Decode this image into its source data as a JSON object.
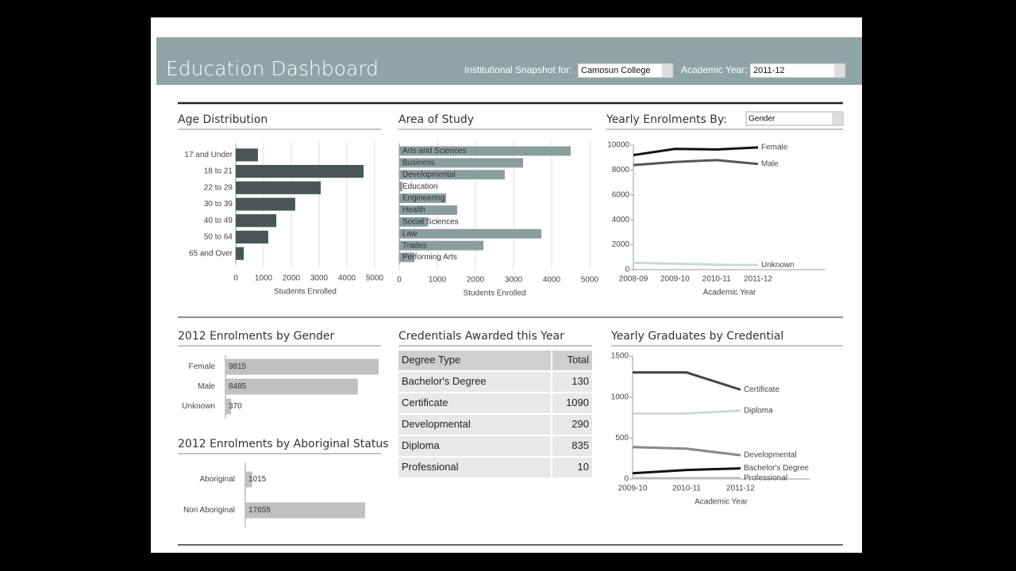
{
  "header": {
    "title": "Education Dashboard",
    "snapshot_label": "Institutional Snapshot for:",
    "institution": "Camosun College",
    "year_label": "Academic Year:",
    "year": "2011-12"
  },
  "chart_data": [
    {
      "type": "bar",
      "title": "Age Distribution",
      "categories": [
        "17 and Under",
        "18 to 21",
        "22 to 29",
        "30 to 39",
        "40 to 49",
        "50 to 64",
        "65 and Over"
      ],
      "values": [
        800,
        4600,
        3060,
        2140,
        1460,
        1170,
        290
      ],
      "color": "#4a5656",
      "xlim": [
        0,
        5000
      ],
      "xticks": [
        0,
        1000,
        2000,
        3000,
        4000,
        5000
      ],
      "xlabel": "Students Enrolled",
      "grid": true
    },
    {
      "type": "bar",
      "title": "Area of Study",
      "categories": [
        "Arts and Sciences",
        "Business",
        "Developmental",
        "Education",
        "Engineering",
        "Health",
        "Social Sciences",
        "Law",
        "Trades",
        "Performing Arts"
      ],
      "values": [
        4500,
        3250,
        2770,
        80,
        1230,
        1520,
        750,
        3730,
        2210,
        400
      ],
      "color": "#8a9e9e",
      "xlim": [
        0,
        5000
      ],
      "xticks": [
        0,
        1000,
        2000,
        3000,
        4000,
        5000
      ],
      "xlabel": "Students Enrolled",
      "grid": true,
      "label_position": "inside"
    },
    {
      "type": "line",
      "title": "Yearly Enrolments By:",
      "selector": "Gender",
      "categories": [
        "2008-09",
        "2009-10",
        "2010-11",
        "2011-12"
      ],
      "xlabel": "Academic Year",
      "ylim": [
        0,
        10000
      ],
      "yticks": [
        0,
        2000,
        4000,
        6000,
        8000,
        10000
      ],
      "series": [
        {
          "name": "Female",
          "color": "#111111",
          "values": [
            9200,
            9700,
            9650,
            9815
          ]
        },
        {
          "name": "Male",
          "color": "#555555",
          "values": [
            8400,
            8650,
            8800,
            8485
          ]
        },
        {
          "name": "Unknown",
          "color": "#c8dada",
          "values": [
            550,
            480,
            400,
            370
          ]
        }
      ]
    },
    {
      "type": "bar",
      "title": "2012 Enrolments by Gender",
      "categories": [
        "Female",
        "Male",
        "Unknown"
      ],
      "values": [
        9815,
        8485,
        370
      ],
      "color": "#c0c0c0"
    },
    {
      "type": "bar",
      "title": "2012 Enrolments by Aboriginal Status",
      "categories": [
        "Aboriginal",
        "Non Aboriginal"
      ],
      "values": [
        1015,
        17655
      ],
      "color": "#c0c0c0"
    },
    {
      "type": "line",
      "title": "Yearly Graduates by Credential",
      "categories": [
        "2009-10",
        "2010-11",
        "2011-12"
      ],
      "xlabel": "Academic Year",
      "ylim": [
        0,
        1500
      ],
      "yticks": [
        0,
        500,
        1000,
        1500
      ],
      "series": [
        {
          "name": "Certificate",
          "color": "#444444",
          "values": [
            1300,
            1300,
            1090
          ]
        },
        {
          "name": "Diploma",
          "color": "#d0d8d8",
          "values": [
            800,
            800,
            835
          ]
        },
        {
          "name": "Developmental",
          "color": "#888888",
          "values": [
            390,
            370,
            290
          ]
        },
        {
          "name": "Bachelor's Degree",
          "color": "#111111",
          "values": [
            70,
            110,
            130
          ]
        },
        {
          "name": "Professional",
          "color": "#bbbbbb",
          "values": [
            10,
            10,
            10
          ]
        }
      ]
    }
  ],
  "table": {
    "title": "Credentials Awarded this Year",
    "columns": [
      "Degree Type",
      "Total"
    ],
    "rows": [
      [
        "Bachelor's Degree",
        "130"
      ],
      [
        "Certificate",
        "1090"
      ],
      [
        "Developmental",
        "290"
      ],
      [
        "Diploma",
        "835"
      ],
      [
        "Professional",
        "10"
      ]
    ]
  }
}
